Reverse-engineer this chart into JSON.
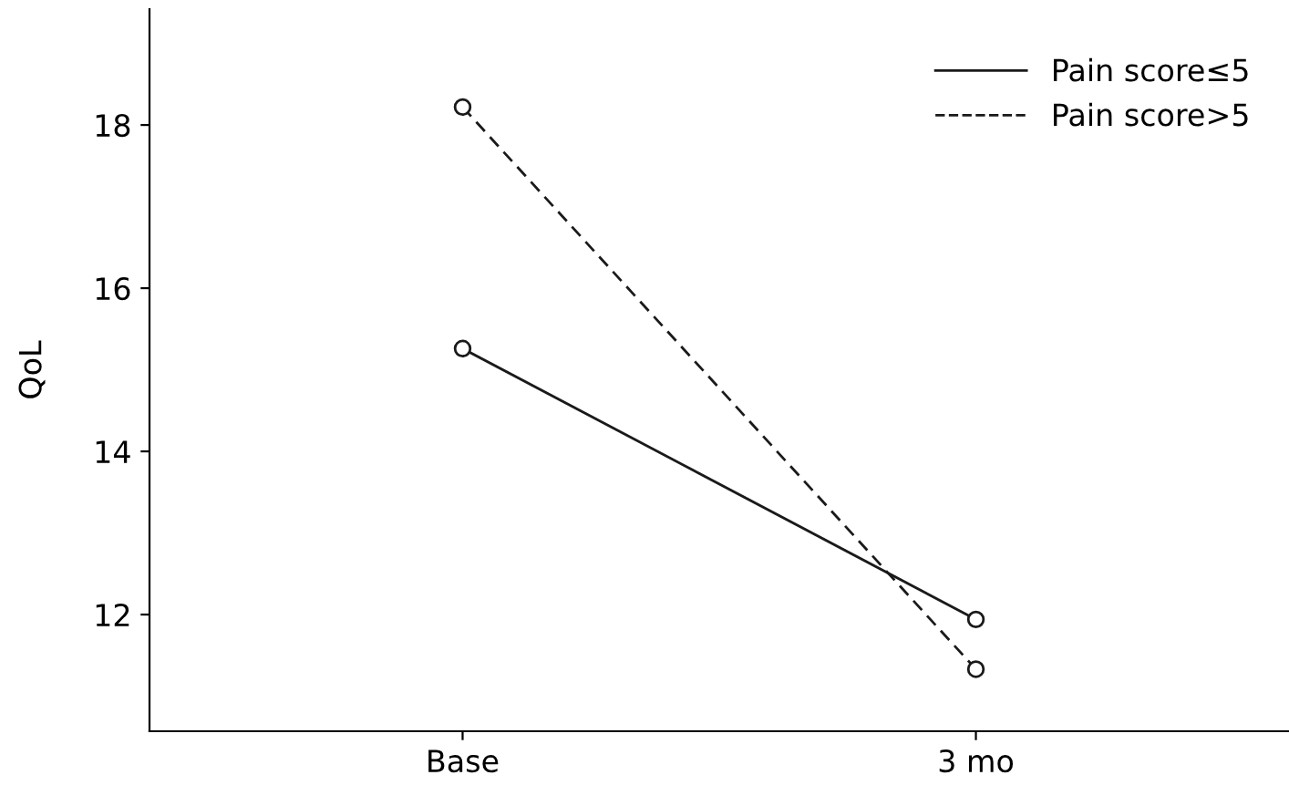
{
  "chart_data": {
    "type": "line",
    "ylabel": "QoL",
    "categories": [
      "Base",
      "3 mo"
    ],
    "series": [
      {
        "name": "Pain score≤5",
        "color": "#1a1a1a",
        "values": [
          15.26,
          11.94
        ],
        "line_style": "solid"
      },
      {
        "name": "Pain score>5",
        "color": "#1a1a1a",
        "values": [
          18.22,
          11.33
        ],
        "line_style": "dashed"
      }
    ],
    "ylim": [
      10.57,
      19.42
    ],
    "yticks": [
      12,
      14,
      16,
      18
    ],
    "marker": "circle",
    "legend": "top right",
    "grid": false
  }
}
